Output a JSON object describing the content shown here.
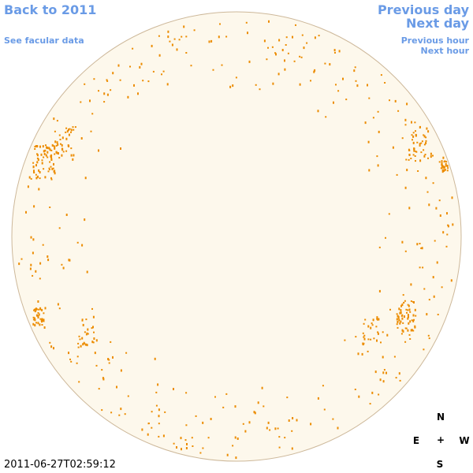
{
  "nav": {
    "back_to_year": "Back to 2011",
    "see_facular_data": "See facular data",
    "previous_day": "Previous day",
    "next_day": "Next day",
    "previous_hour": "Previous hour",
    "next_hour": "Next hour"
  },
  "timestamp": "2011-06-27T02:59:12",
  "compass": {
    "north": "N",
    "east": "E",
    "center": "+",
    "west": "W",
    "south": "S"
  }
}
